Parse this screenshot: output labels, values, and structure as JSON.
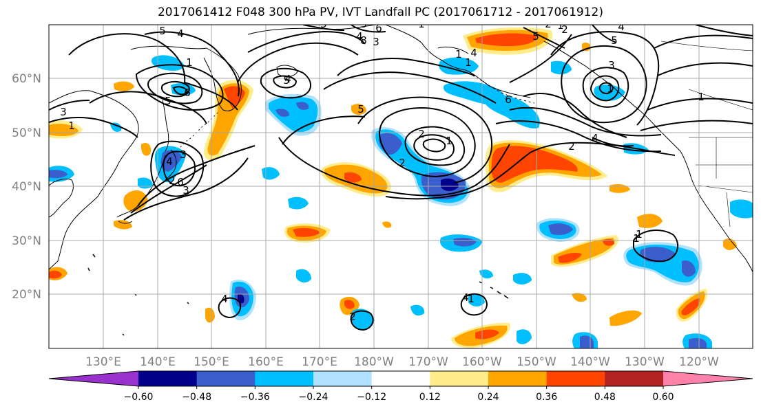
{
  "title": "2017061412 F048 300 hPa PV, IVT Landfall PC (2017061712 - 2017061912)",
  "lat_labels": [
    "60°N",
    "50°N",
    "40°N",
    "30°N",
    "20°N"
  ],
  "lon_labels": [
    "130°E",
    "140°E",
    "150°E",
    "160°E",
    "170°E",
    "180°W",
    "170°W",
    "160°W",
    "150°W",
    "140°W",
    "130°W",
    "120°W"
  ],
  "colorbar": {
    "colors": [
      "#9932cc",
      "#00008b",
      "#3a5fcd",
      "#00bfff",
      "#b0e2ff",
      "#ffffff",
      "#ffec8b",
      "#ffa500",
      "#ff4500",
      "#b22222",
      "#ff82ab"
    ],
    "tick_labels": [
      "−0.60",
      "−0.48",
      "−0.36",
      "−0.24",
      "−0.12",
      "0.12",
      "0.24",
      "0.36",
      "0.48",
      "0.60"
    ]
  },
  "contour_labels": [
    "5",
    "4",
    "1",
    "6",
    "5",
    "3",
    "2",
    "6",
    "5",
    "4",
    "3",
    "8",
    "5",
    "6",
    "4",
    "3",
    "5",
    "2",
    "2",
    "1",
    "4",
    "6",
    "5",
    "2",
    "1",
    "2",
    "4",
    "2",
    "3",
    "1",
    "1",
    "1",
    "3",
    "4",
    "3",
    "5",
    "4",
    "4",
    "4",
    "2",
    "1",
    "1",
    "1",
    "1",
    "1",
    "1"
  ]
}
